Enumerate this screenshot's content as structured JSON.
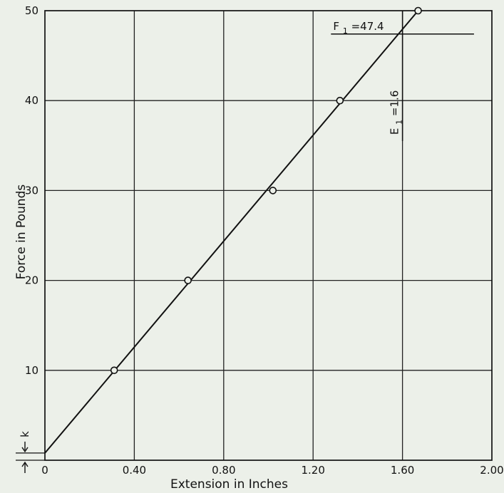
{
  "chart_data": {
    "type": "line",
    "title": "",
    "xlabel": "Extension in Inches",
    "ylabel": "Force in Pounds",
    "xlim": [
      0,
      2.0
    ],
    "ylim": [
      0,
      50
    ],
    "grid": true,
    "x_ticks": [
      0,
      0.4,
      0.8,
      1.2,
      1.6,
      2.0
    ],
    "x_tick_labels": [
      "0",
      "0.40",
      "0.80",
      "1.20",
      "1.60",
      "2.00"
    ],
    "y_ticks": [
      10,
      20,
      30,
      40,
      50
    ],
    "y_tick_labels": [
      "10",
      "20",
      "30",
      "40",
      "50"
    ],
    "points": [
      {
        "x": 0.31,
        "y": 10
      },
      {
        "x": 0.64,
        "y": 20
      },
      {
        "x": 1.02,
        "y": 30
      },
      {
        "x": 1.32,
        "y": 40
      },
      {
        "x": 1.67,
        "y": 50
      }
    ],
    "fit_line": {
      "x": [
        0,
        1.67
      ],
      "y": [
        0.8,
        50
      ]
    },
    "annotations": {
      "f1_label": "F",
      "f1_subscript": "1",
      "f1_value": "=47.4",
      "f1_y": 47.4,
      "e1_label": "E",
      "e1_subscript": "1",
      "e1_value": "=1.6",
      "e1_x": 1.6,
      "k_label": "k",
      "k_y": 0.8
    }
  }
}
